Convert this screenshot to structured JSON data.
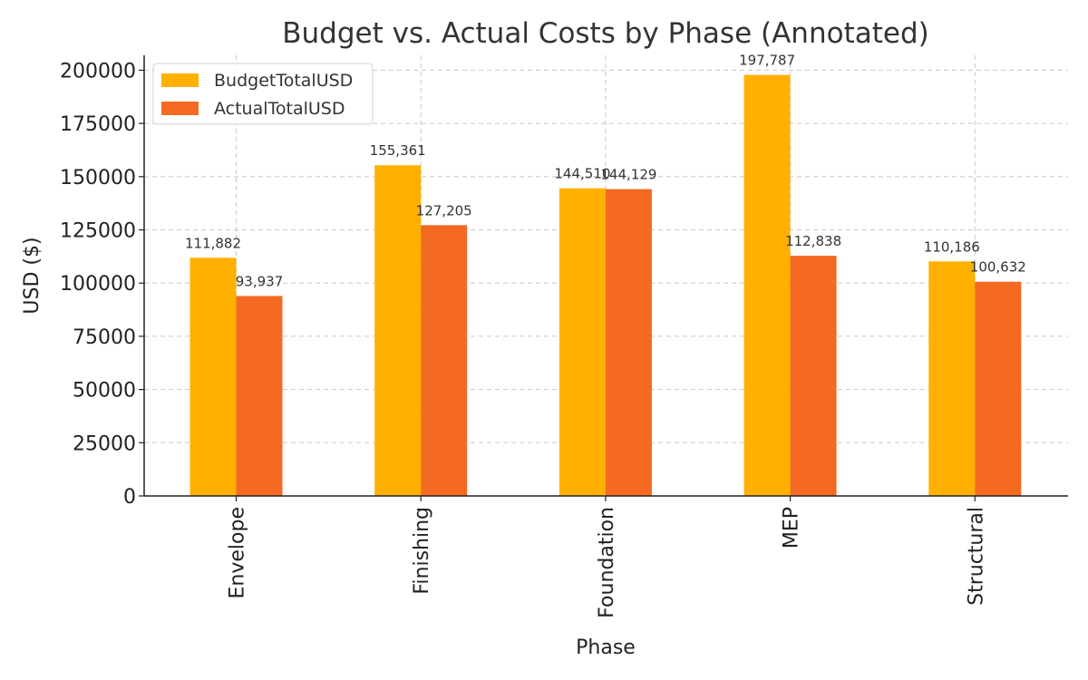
{
  "chart_data": {
    "type": "bar",
    "title": "Budget vs. Actual Costs by Phase (Annotated)",
    "xlabel": "Phase",
    "ylabel": "USD ($)",
    "categories": [
      "Envelope",
      "Finishing",
      "Foundation",
      "MEP",
      "Structural"
    ],
    "series": [
      {
        "name": "BudgetTotalUSD",
        "color": "#FFB000",
        "values": [
          111882,
          155361,
          144510,
          197787,
          110186
        ],
        "labels": [
          "111,882",
          "155,361",
          "144,510",
          "197,787",
          "110,186"
        ]
      },
      {
        "name": "ActualTotalUSD",
        "color": "#F46A22",
        "values": [
          93937,
          127205,
          144129,
          112838,
          100632
        ],
        "labels": [
          "93,937",
          "127,205",
          "144,129",
          "112,838",
          "100,632"
        ]
      }
    ],
    "ylim": [
      0,
      207000
    ],
    "yticks": [
      0,
      25000,
      50000,
      75000,
      100000,
      125000,
      150000,
      175000,
      200000
    ],
    "ytick_labels": [
      "0",
      "25000",
      "50000",
      "75000",
      "100000",
      "125000",
      "150000",
      "175000",
      "200000"
    ],
    "grid": true,
    "legend_position": "top-left"
  }
}
